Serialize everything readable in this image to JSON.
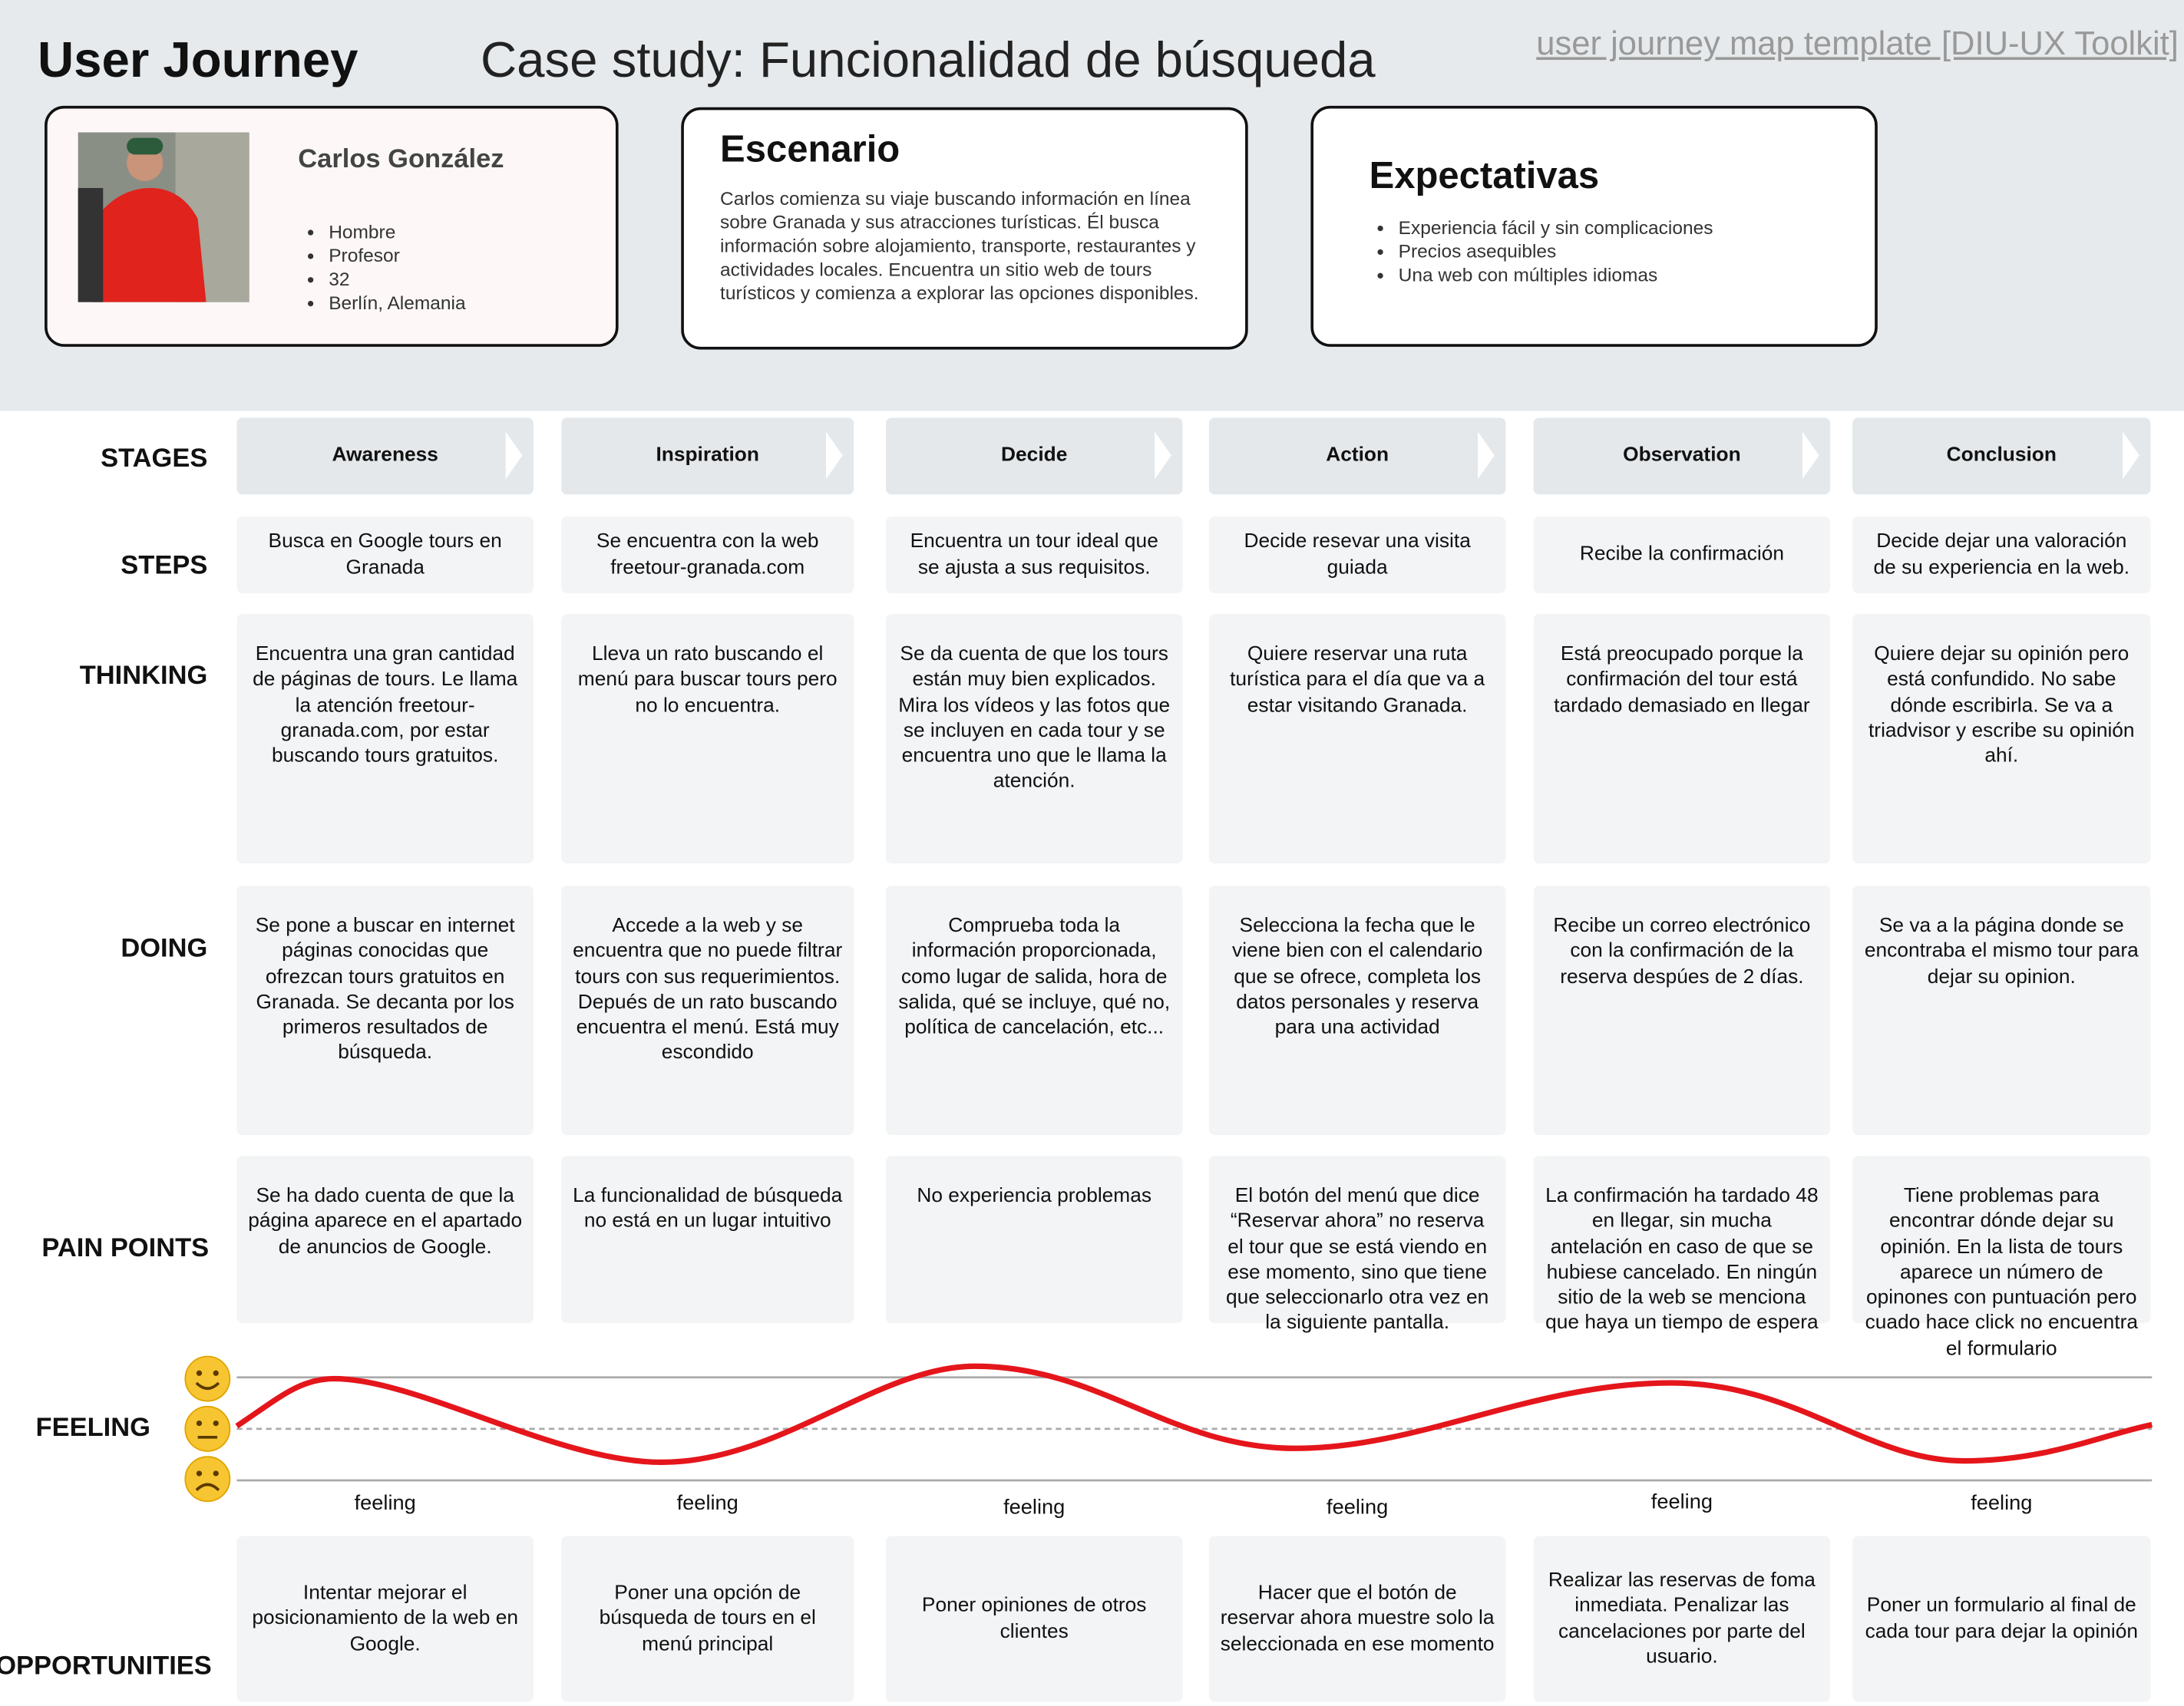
{
  "header": {
    "title": "User Journey",
    "subtitle": "Case study: Funcionalidad de búsqueda",
    "link": "user journey map template [DIU-UX Toolkit]"
  },
  "persona": {
    "name": "Carlos González",
    "details": [
      "Hombre",
      "Profesor",
      "32",
      "Berlín, Alemania"
    ]
  },
  "scenario": {
    "title": "Escenario",
    "text": "Carlos comienza su viaje buscando información en línea sobre Granada y sus atracciones turísticas. Él busca información sobre alojamiento, transporte, restaurantes y actividades locales. Encuentra un sitio web de tours turísticos y comienza a explorar las opciones disponibles."
  },
  "expectations": {
    "title": "Expectativas",
    "items": [
      "Experiencia fácil y sin complicaciones",
      "Precios asequibles",
      "Una web con múltiples idiomas"
    ]
  },
  "row_labels": [
    "STAGES",
    "STEPS",
    "THINKING",
    "DOING",
    "PAIN POINTS",
    "FEELING",
    "OPPORTUNITIES"
  ],
  "stages": [
    "Awareness",
    "Inspiration",
    "Decide",
    "Action",
    "Observation",
    "Conclusion"
  ],
  "steps": [
    "Busca en Google tours en Granada",
    "Se encuentra con la web freetour-granada.com",
    "Encuentra un tour ideal que se ajusta a sus requisitos.",
    "Decide resevar una visita guiada",
    "Recibe la confirmación",
    "Decide dejar una valoración de su experiencia en la web."
  ],
  "thinking": [
    "Encuentra una gran cantidad de páginas de tours. Le llama la atención freetour-granada.com, por estar buscando tours gratuitos.",
    "Lleva un rato buscando el menú para buscar tours pero no lo encuentra.",
    "Se da cuenta de que los tours están muy bien explicados. Mira los vídeos y las fotos que se incluyen en cada tour y se encuentra uno que le llama la atención.",
    "Quiere reservar una ruta turística para el día que va a estar visitando Granada.",
    "Está preocupado porque  la confirmación del tour está tardado demasiado en llegar",
    "Quiere dejar su opinión pero está confundido. No sabe dónde escribirla. Se va a triadvisor y escribe su opinión ahí."
  ],
  "doing": [
    "Se pone a buscar en internet páginas conocidas que ofrezcan tours gratuitos en Granada. Se decanta por los primeros resultados de búsqueda.",
    "Accede a la web y se encuentra que no puede filtrar tours con sus requerimientos. Depués de un rato buscando encuentra el menú. Está muy escondido",
    "Comprueba toda la información proporcionada, como lugar de salida, hora de salida, qué se incluye, qué no, política de cancelación, etc...",
    "Selecciona la fecha que le viene bien con el calendario que se ofrece, completa los datos personales y reserva para una actividad",
    "Recibe  un correo electrónico con la confirmación de la reserva despúes de 2 días.",
    "Se va a la página donde se encontraba el mismo tour para dejar su opinion."
  ],
  "pain_points": [
    "Se ha dado cuenta de que la página aparece en el apartado de anuncios de Google.",
    "La funcionalidad de búsqueda no está en un lugar intuitivo",
    "No experiencia problemas",
    "El botón del menú que dice “Reservar ahora” no reserva el tour que se está viendo en ese momento, sino que tiene que seleccionarlo otra vez en la siguiente pantalla.",
    "La confirmación ha tardado 48 en llegar, sin mucha antelación en caso de que se hubiese cancelado. En ningún sitio de la web se menciona que haya un tiempo de espera",
    "Tiene problemas para encontrar dónde dejar su opinión. En la lista de tours aparece un número de opinones con puntuación pero cuado hace click no encuentra el formulario"
  ],
  "feeling": [
    "feeling",
    "feeling",
    "feeling",
    "feeling",
    "feeling",
    "feeling"
  ],
  "opportunities": [
    "Intentar mejorar el posicionamiento de la web en Google.",
    "Poner una opción de búsqueda de tours en el menú principal",
    "Poner opiniones de otros clientes",
    "Hacer que el botón de reservar ahora muestre solo la seleccionada en ese momento",
    "Realizar las reservas de foma inmediata. Penalizar las cancelaciones por parte del usuario.",
    "Poner un formulario al final de cada tour para dejar la opinión"
  ]
}
